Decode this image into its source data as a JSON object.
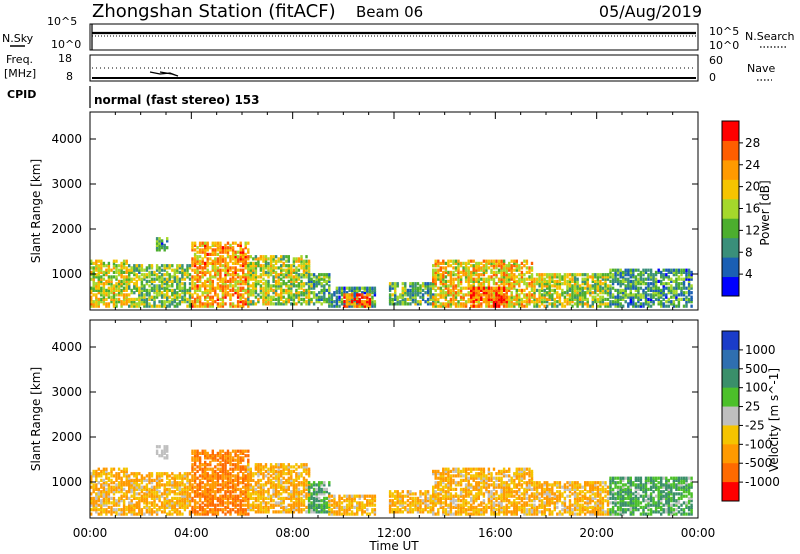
{
  "header": {
    "station": "Zhongshan Station (fitACF)",
    "beam": "Beam 06",
    "date": "05/Aug/2019"
  },
  "top_panels": {
    "nsky": {
      "label": "N.Sky",
      "ticks": [
        "10^5",
        "10^0"
      ]
    },
    "nsearch": {
      "label": "N.Search",
      "ticks": [
        "10^5",
        "10^0"
      ]
    },
    "freq": {
      "label_line1": "Freq.",
      "label_line2": "[MHz]",
      "ticks": [
        "18",
        "8"
      ]
    },
    "nave": {
      "label": "Nave",
      "ticks": [
        "60",
        "0"
      ]
    },
    "cpid": {
      "label": "CPID",
      "text": "normal (fast stereo) 153"
    }
  },
  "chart_data": [
    {
      "type": "heatmap",
      "name": "power",
      "ylabel": "Slant Range [km]",
      "xlabel": "",
      "xticks": [
        "00:00",
        "04:00",
        "08:00",
        "12:00",
        "16:00",
        "20:00",
        "00:00"
      ],
      "yticks": [
        "1000",
        "2000",
        "3000",
        "4000"
      ],
      "ylim": [
        200,
        4600
      ],
      "xlim_hours": [
        0,
        24
      ],
      "colorbar": {
        "label": "Power [dB]",
        "ticks": [
          "4",
          "8",
          "12",
          "16",
          "20",
          "24",
          "28"
        ],
        "range": [
          0,
          32
        ],
        "colors": [
          "#0000ff",
          "#1a5fb4",
          "#3a8f7a",
          "#4cae2e",
          "#a5d82b",
          "#f5c400",
          "#ff9a00",
          "#ff5e00",
          "#ff0000"
        ]
      },
      "echo_regions": [
        {
          "t0": 0.0,
          "t1": 1.5,
          "r0": 250,
          "r1": 1300,
          "level": 18
        },
        {
          "t0": 1.5,
          "t1": 4.0,
          "r0": 250,
          "r1": 1200,
          "level": 14
        },
        {
          "t0": 2.6,
          "t1": 3.1,
          "r0": 1500,
          "r1": 1800,
          "level": 10
        },
        {
          "t0": 4.0,
          "t1": 6.2,
          "r0": 250,
          "r1": 1700,
          "level": 22
        },
        {
          "t0": 6.2,
          "t1": 8.6,
          "r0": 300,
          "r1": 1400,
          "level": 16
        },
        {
          "t0": 8.6,
          "t1": 9.4,
          "r0": 300,
          "r1": 1000,
          "level": 12
        },
        {
          "t0": 9.4,
          "t1": 11.2,
          "r0": 250,
          "r1": 700,
          "level": 10
        },
        {
          "t0": 10.0,
          "t1": 11.0,
          "r0": 250,
          "r1": 550,
          "level": 26
        },
        {
          "t0": 11.8,
          "t1": 13.5,
          "r0": 300,
          "r1": 800,
          "level": 12
        },
        {
          "t0": 13.5,
          "t1": 17.5,
          "r0": 250,
          "r1": 1300,
          "level": 20
        },
        {
          "t0": 15.0,
          "t1": 16.5,
          "r0": 250,
          "r1": 700,
          "level": 28
        },
        {
          "t0": 17.5,
          "t1": 20.5,
          "r0": 250,
          "r1": 1000,
          "level": 16
        },
        {
          "t0": 20.5,
          "t1": 23.8,
          "r0": 250,
          "r1": 1100,
          "level": 10
        }
      ]
    },
    {
      "type": "heatmap",
      "name": "velocity",
      "ylabel": "Slant Range [km]",
      "xlabel": "Time UT",
      "xticks": [
        "00:00",
        "04:00",
        "08:00",
        "12:00",
        "16:00",
        "20:00",
        "00:00"
      ],
      "yticks": [
        "1000",
        "2000",
        "3000",
        "4000"
      ],
      "ylim": [
        200,
        4600
      ],
      "xlim_hours": [
        0,
        24
      ],
      "colorbar": {
        "label": "Velocity [m s^-1]",
        "ticks": [
          "1000",
          "500",
          "100",
          "25",
          "-25",
          "-100",
          "-500",
          "-1000"
        ],
        "colors": [
          "#1a3cc8",
          "#2f6fb0",
          "#3a8f6a",
          "#4cc02a",
          "#bfbfbf",
          "#f5c400",
          "#ff9a00",
          "#ff6a00",
          "#ff0000"
        ]
      },
      "echo_regions": [
        {
          "t0": 0.0,
          "t1": 1.5,
          "r0": 250,
          "r1": 1300,
          "level": -100
        },
        {
          "t0": 1.5,
          "t1": 4.0,
          "r0": 250,
          "r1": 1200,
          "level": -100
        },
        {
          "t0": 2.6,
          "t1": 3.1,
          "r0": 1500,
          "r1": 1800,
          "level": 0
        },
        {
          "t0": 4.0,
          "t1": 6.2,
          "r0": 250,
          "r1": 1700,
          "level": -500
        },
        {
          "t0": 6.2,
          "t1": 8.6,
          "r0": 300,
          "r1": 1400,
          "level": -100
        },
        {
          "t0": 8.6,
          "t1": 9.4,
          "r0": 300,
          "r1": 1000,
          "level": 100
        },
        {
          "t0": 9.4,
          "t1": 11.2,
          "r0": 250,
          "r1": 700,
          "level": -100
        },
        {
          "t0": 11.8,
          "t1": 13.5,
          "r0": 300,
          "r1": 800,
          "level": -100
        },
        {
          "t0": 13.5,
          "t1": 17.5,
          "r0": 250,
          "r1": 1300,
          "level": -100
        },
        {
          "t0": 17.5,
          "t1": 20.5,
          "r0": 250,
          "r1": 1000,
          "level": -100
        },
        {
          "t0": 20.5,
          "t1": 23.8,
          "r0": 250,
          "r1": 1100,
          "level": 100
        }
      ]
    }
  ]
}
